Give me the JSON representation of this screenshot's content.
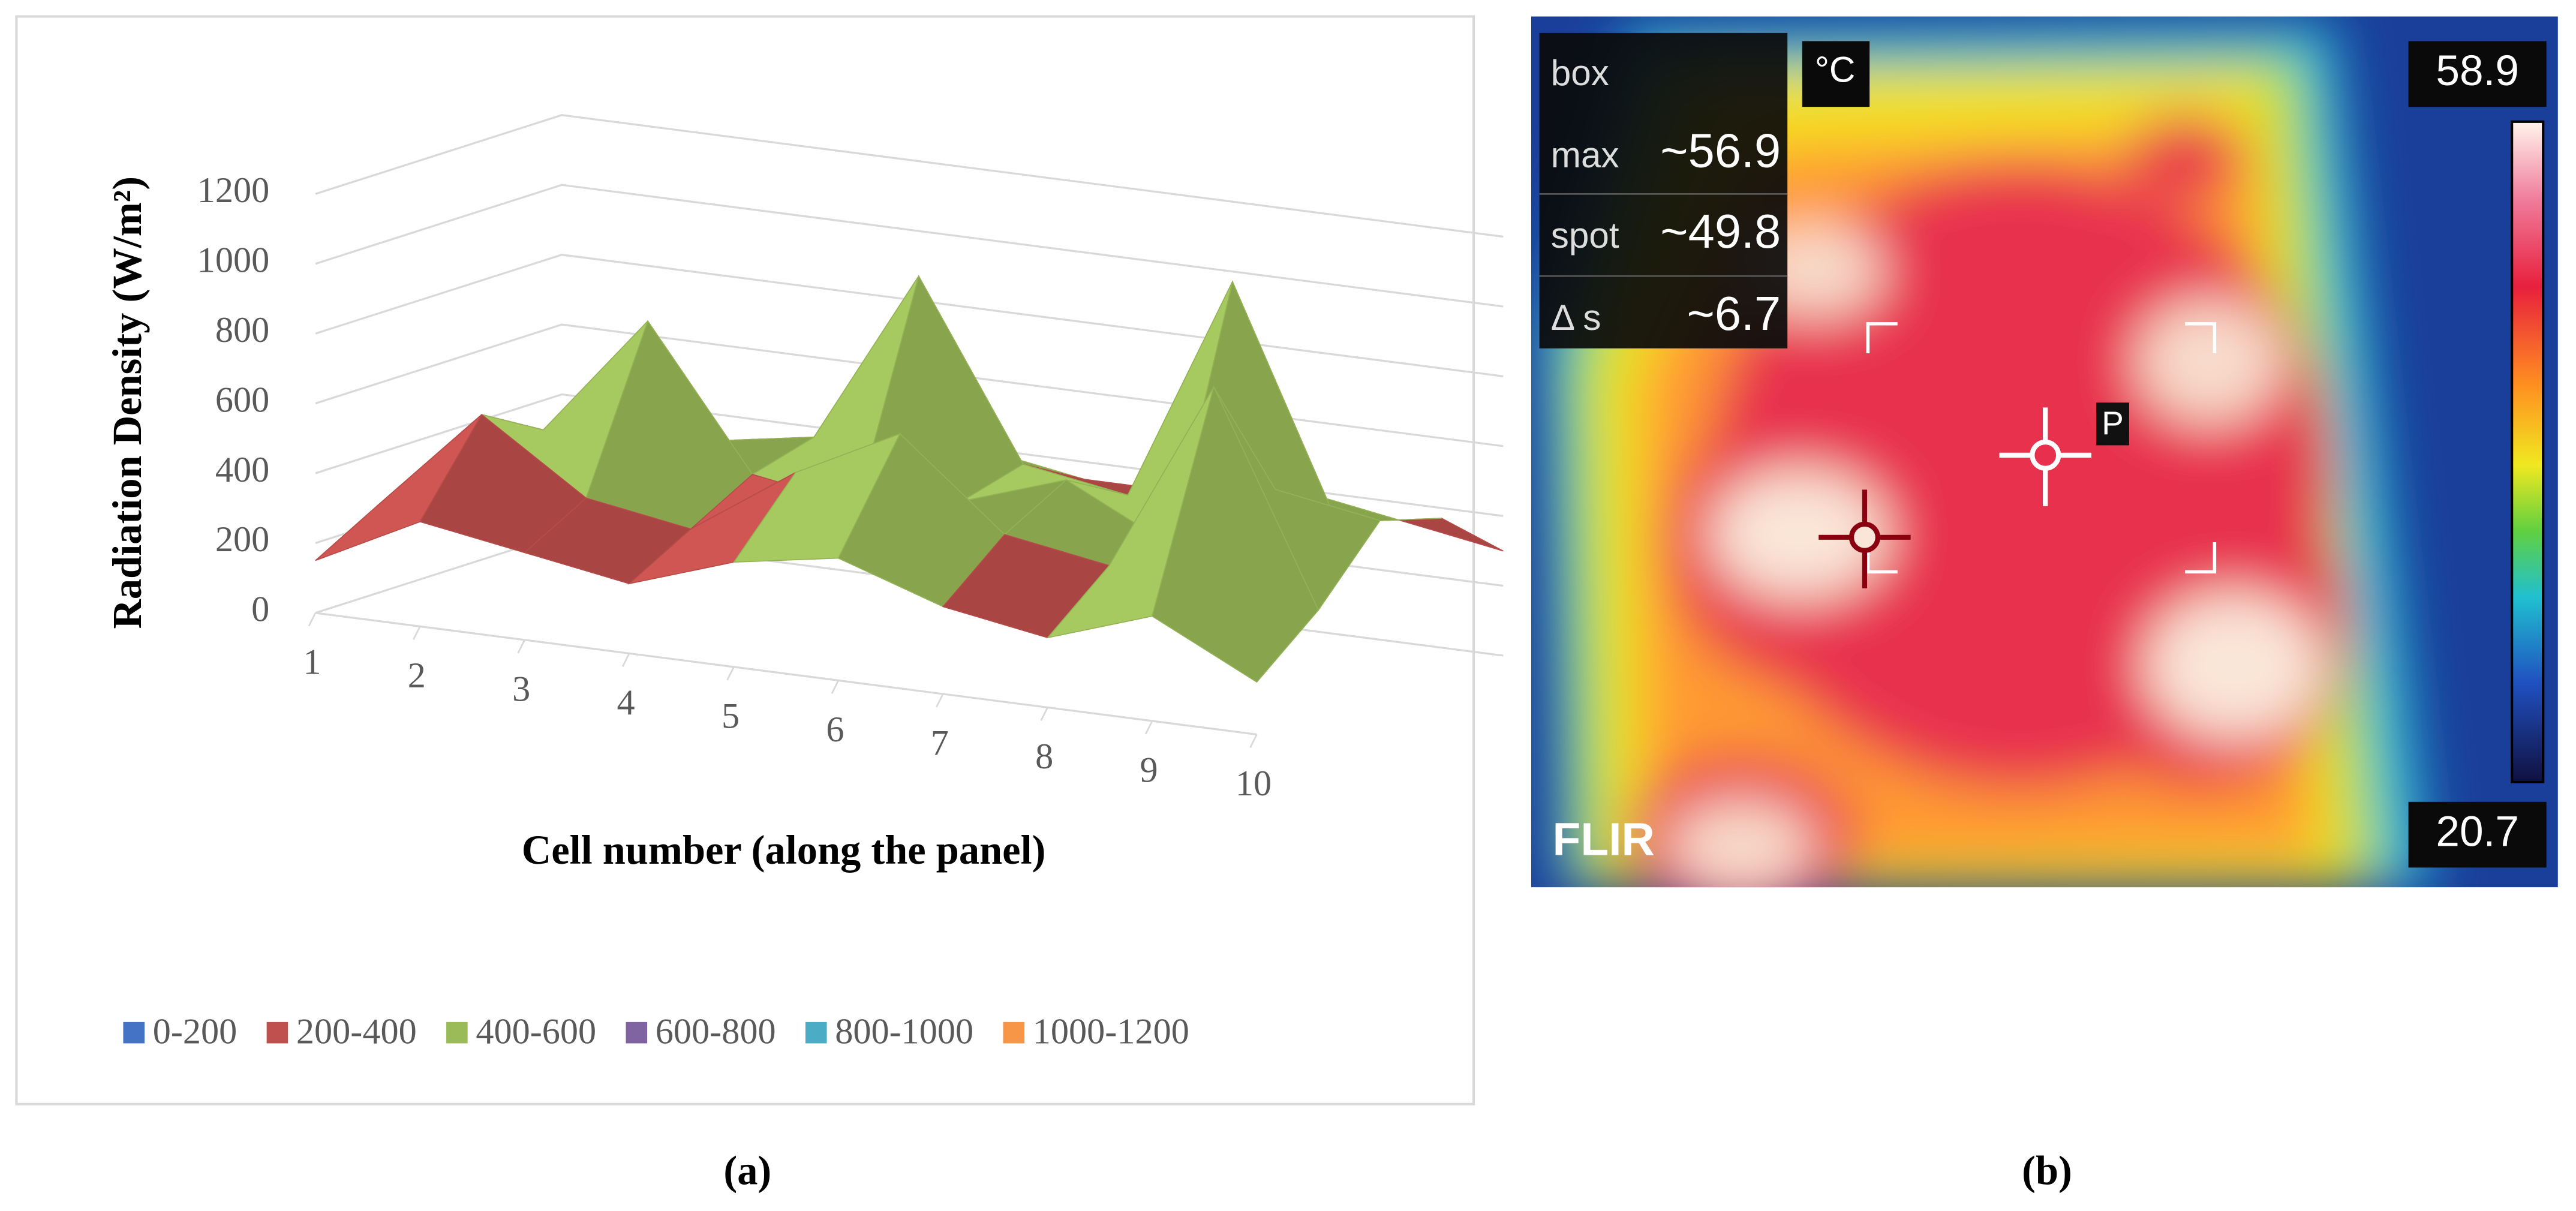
{
  "chart_data": {
    "type": "surface",
    "y_label": "Radiation Density (W/m²)",
    "x_label": "Cell number (along the panel)",
    "categories": [
      "1",
      "2",
      "3",
      "4",
      "5",
      "6",
      "7",
      "8",
      "9",
      "10"
    ],
    "values": [
      [
        150,
        300,
        250,
        200,
        300,
        350,
        250,
        200,
        300,
        150
      ],
      [
        250,
        550,
        350,
        300,
        500,
        650,
        400,
        350,
        900,
        300
      ],
      [
        300,
        450,
        800,
        400,
        350,
        400,
        500,
        350,
        550,
        500
      ],
      [
        300,
        350,
        400,
        450,
        950,
        450,
        400,
        1050,
        400,
        450
      ],
      [
        250,
        300,
        300,
        350,
        400,
        350,
        350,
        400,
        350,
        300
      ]
    ],
    "zlim": [
      0,
      1200
    ],
    "zticks": [
      0,
      200,
      400,
      600,
      800,
      1000,
      1200
    ],
    "grid": true,
    "bands": [
      {
        "name": "0-200",
        "color": "#4472c4"
      },
      {
        "name": "200-400",
        "color": "#c0504d"
      },
      {
        "name": "400-600",
        "color": "#9bbb59"
      },
      {
        "name": "600-800",
        "color": "#8064a2"
      },
      {
        "name": "800-1000",
        "color": "#4bacc6"
      },
      {
        "name": "1000-1200",
        "color": "#f79646"
      }
    ]
  },
  "thermal_image": {
    "readouts": [
      {
        "label": "box"
      },
      {
        "label": "max",
        "value": "~56.9"
      },
      {
        "label": "spot",
        "value": "~49.8"
      },
      {
        "label": "Δ s",
        "value": "~6.7"
      }
    ],
    "unit": "°C",
    "scale_max": 58.9,
    "scale_min": 20.7,
    "brand": "FLIR",
    "marker": "P"
  },
  "panel_labels": [
    "(a)",
    "(b)"
  ]
}
